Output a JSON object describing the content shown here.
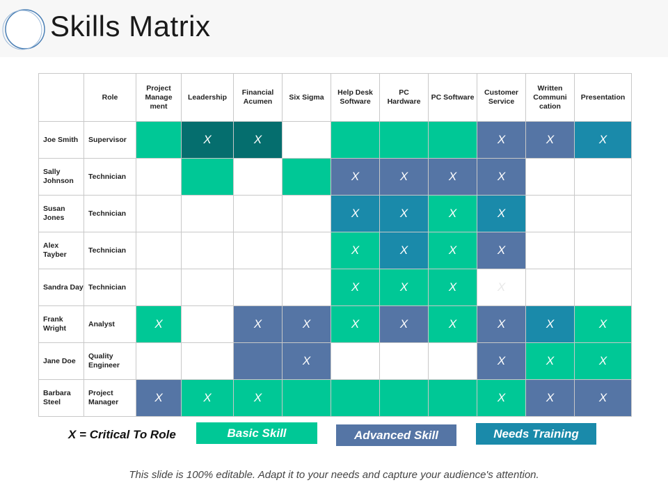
{
  "title": "Skills Matrix",
  "colors": {
    "basic": "#00c896",
    "advanced": "#5575a5",
    "needs_training": "#1a8aaa",
    "dark": "#056e6e"
  },
  "headers": [
    "",
    "Role",
    "Project Manage ment",
    "Leadership",
    "Financial Acumen",
    "Six Sigma",
    "Help Desk Software",
    "PC Hardware",
    "PC Software",
    "Customer Service",
    "Written Communi cation",
    "Presentation"
  ],
  "rows": [
    {
      "name": "Joe Smith",
      "role": "Supervisor",
      "cells": [
        [
          "basic",
          ""
        ],
        [
          "dark",
          "X"
        ],
        [
          "dark",
          "X"
        ],
        [
          "empty",
          ""
        ],
        [
          "basic",
          ""
        ],
        [
          "basic",
          ""
        ],
        [
          "basic",
          ""
        ],
        [
          "adv",
          "X"
        ],
        [
          "adv",
          "X"
        ],
        [
          "need",
          "X"
        ]
      ]
    },
    {
      "name": "Sally Johnson",
      "role": "Technician",
      "cells": [
        [
          "empty",
          ""
        ],
        [
          "basic",
          ""
        ],
        [
          "empty",
          ""
        ],
        [
          "basic",
          ""
        ],
        [
          "adv",
          "X"
        ],
        [
          "adv",
          "X"
        ],
        [
          "adv",
          "X"
        ],
        [
          "adv",
          "X"
        ],
        [
          "empty",
          ""
        ],
        [
          "empty",
          ""
        ]
      ]
    },
    {
      "name": "Susan Jones",
      "role": "Technician",
      "cells": [
        [
          "empty",
          ""
        ],
        [
          "empty",
          ""
        ],
        [
          "empty",
          ""
        ],
        [
          "empty",
          ""
        ],
        [
          "need",
          "X"
        ],
        [
          "need",
          "X"
        ],
        [
          "basic",
          "X"
        ],
        [
          "need",
          "X"
        ],
        [
          "empty",
          ""
        ],
        [
          "empty",
          ""
        ]
      ]
    },
    {
      "name": "Alex Tayber",
      "role": "Technician",
      "cells": [
        [
          "empty",
          ""
        ],
        [
          "empty",
          ""
        ],
        [
          "empty",
          ""
        ],
        [
          "empty",
          ""
        ],
        [
          "basic",
          "X"
        ],
        [
          "need",
          "X"
        ],
        [
          "basic",
          "X"
        ],
        [
          "adv",
          "X"
        ],
        [
          "empty",
          ""
        ],
        [
          "empty",
          ""
        ]
      ]
    },
    {
      "name": "Sandra Day",
      "role": "Technician",
      "cells": [
        [
          "empty",
          ""
        ],
        [
          "empty",
          ""
        ],
        [
          "empty",
          ""
        ],
        [
          "empty",
          ""
        ],
        [
          "basic",
          "X"
        ],
        [
          "basic",
          "X"
        ],
        [
          "basic",
          "X"
        ],
        [
          "empty",
          "X"
        ],
        [
          "empty",
          ""
        ],
        [
          "empty",
          ""
        ]
      ]
    },
    {
      "name": "Frank Wright",
      "role": "Analyst",
      "cells": [
        [
          "basic",
          "X"
        ],
        [
          "empty",
          ""
        ],
        [
          "adv",
          "X"
        ],
        [
          "adv",
          "X"
        ],
        [
          "basic",
          "X"
        ],
        [
          "adv",
          "X"
        ],
        [
          "basic",
          "X"
        ],
        [
          "adv",
          "X"
        ],
        [
          "need",
          "X"
        ],
        [
          "basic",
          "X"
        ]
      ]
    },
    {
      "name": "Jane Doe",
      "role": "Quality Engineer",
      "cells": [
        [
          "empty",
          ""
        ],
        [
          "empty",
          ""
        ],
        [
          "adv",
          ""
        ],
        [
          "adv",
          "X"
        ],
        [
          "empty",
          ""
        ],
        [
          "empty",
          ""
        ],
        [
          "empty",
          ""
        ],
        [
          "adv",
          "X"
        ],
        [
          "basic",
          "X"
        ],
        [
          "basic",
          "X"
        ]
      ]
    },
    {
      "name": "Barbara Steel",
      "role": "Project Manager",
      "cells": [
        [
          "adv",
          "X"
        ],
        [
          "basic",
          "X"
        ],
        [
          "basic",
          "X"
        ],
        [
          "basic",
          ""
        ],
        [
          "basic",
          ""
        ],
        [
          "basic",
          ""
        ],
        [
          "basic",
          ""
        ],
        [
          "basic",
          "X"
        ],
        [
          "adv",
          "X"
        ],
        [
          "adv",
          "X"
        ]
      ]
    }
  ],
  "legend": {
    "critical": "X = Critical To Role",
    "basic": "Basic Skill",
    "advanced": "Advanced Skill",
    "needs_training": "Needs Training"
  },
  "footer": "This slide is 100% editable. Adapt it to your needs and capture your audience's attention."
}
